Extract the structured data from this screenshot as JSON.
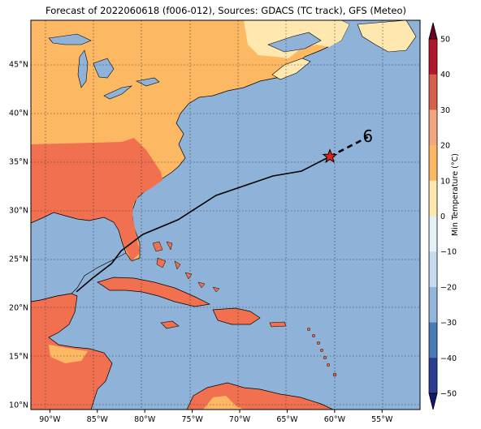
{
  "title": "Forecast of 2022060618 (f006-012), Sources: GDACS (TC track), GFS (Meteo)",
  "map": {
    "lon_range": [
      -92,
      -51
    ],
    "lat_range": [
      9.5,
      49.5
    ],
    "lon_ticks": [
      "90°W",
      "85°W",
      "80°W",
      "75°W",
      "70°W",
      "65°W",
      "60°W",
      "55°W"
    ],
    "lat_ticks": [
      "10°N",
      "15°N",
      "20°N",
      "25°N",
      "30°N",
      "35°N",
      "40°N",
      "45°N"
    ],
    "ocean_color": "#8fb2d8",
    "gridlines": true
  },
  "track": {
    "past_points": [
      [
        -87.2,
        21.6
      ],
      [
        -85.5,
        23.0
      ],
      [
        -83.5,
        24.5
      ],
      [
        -82.5,
        25.8
      ],
      [
        -80.2,
        27.5
      ],
      [
        -76.5,
        29.0
      ],
      [
        -72.5,
        31.5
      ],
      [
        -66.5,
        33.5
      ],
      [
        -63.5,
        34.0
      ],
      [
        -60.5,
        35.5
      ]
    ],
    "forecast_points": [
      [
        -60.5,
        35.5
      ],
      [
        -56.5,
        37.5
      ]
    ],
    "current_position_marker": "red-star",
    "storm_symbol": "6"
  },
  "colorbar": {
    "label": "Min Temperature (°C)",
    "ticks": [
      "50",
      "40",
      "30",
      "20",
      "10",
      "0",
      "−10",
      "−20",
      "−30",
      "−40",
      "−50"
    ],
    "colors": [
      "#67001f",
      "#b2182b",
      "#d6604d",
      "#f4a582",
      "#fdb863",
      "#fee8b0",
      "#e6f0f7",
      "#c6dbef",
      "#92b5d8",
      "#4a7bb7",
      "#2b3d91",
      "#131a6b"
    ]
  }
}
